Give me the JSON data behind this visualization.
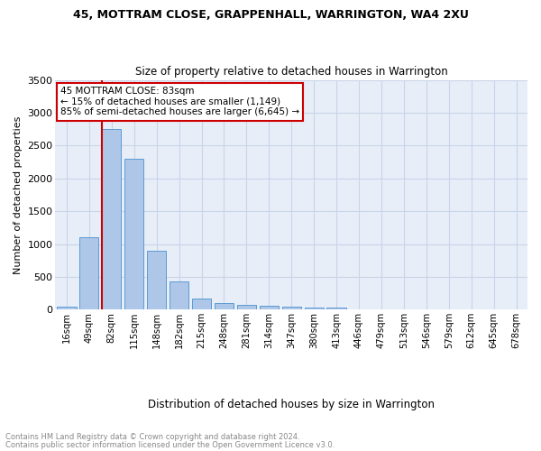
{
  "title": "45, MOTTRAM CLOSE, GRAPPENHALL, WARRINGTON, WA4 2XU",
  "subtitle": "Size of property relative to detached houses in Warrington",
  "xlabel": "Distribution of detached houses by size in Warrington",
  "ylabel": "Number of detached properties",
  "categories": [
    "16sqm",
    "49sqm",
    "82sqm",
    "115sqm",
    "148sqm",
    "182sqm",
    "215sqm",
    "248sqm",
    "281sqm",
    "314sqm",
    "347sqm",
    "380sqm",
    "413sqm",
    "446sqm",
    "479sqm",
    "513sqm",
    "546sqm",
    "579sqm",
    "612sqm",
    "645sqm",
    "678sqm"
  ],
  "values": [
    50,
    1100,
    2750,
    2300,
    900,
    430,
    170,
    105,
    75,
    55,
    40,
    30,
    25,
    0,
    0,
    0,
    0,
    0,
    0,
    0,
    0
  ],
  "bar_color": "#aec6e8",
  "bar_edge_color": "#5b9bd5",
  "background_color": "#e8eef8",
  "grid_color": "#d0d8e8",
  "marker_color": "#cc0000",
  "annotation_title": "45 MOTTRAM CLOSE: 83sqm",
  "annotation_line1": "← 15% of detached houses are smaller (1,149)",
  "annotation_line2": "85% of semi-detached houses are larger (6,645) →",
  "ylim": [
    0,
    3500
  ],
  "yticks": [
    0,
    500,
    1000,
    1500,
    2000,
    2500,
    3000,
    3500
  ],
  "footnote1": "Contains HM Land Registry data © Crown copyright and database right 2024.",
  "footnote2": "Contains public sector information licensed under the Open Government Licence v3.0."
}
